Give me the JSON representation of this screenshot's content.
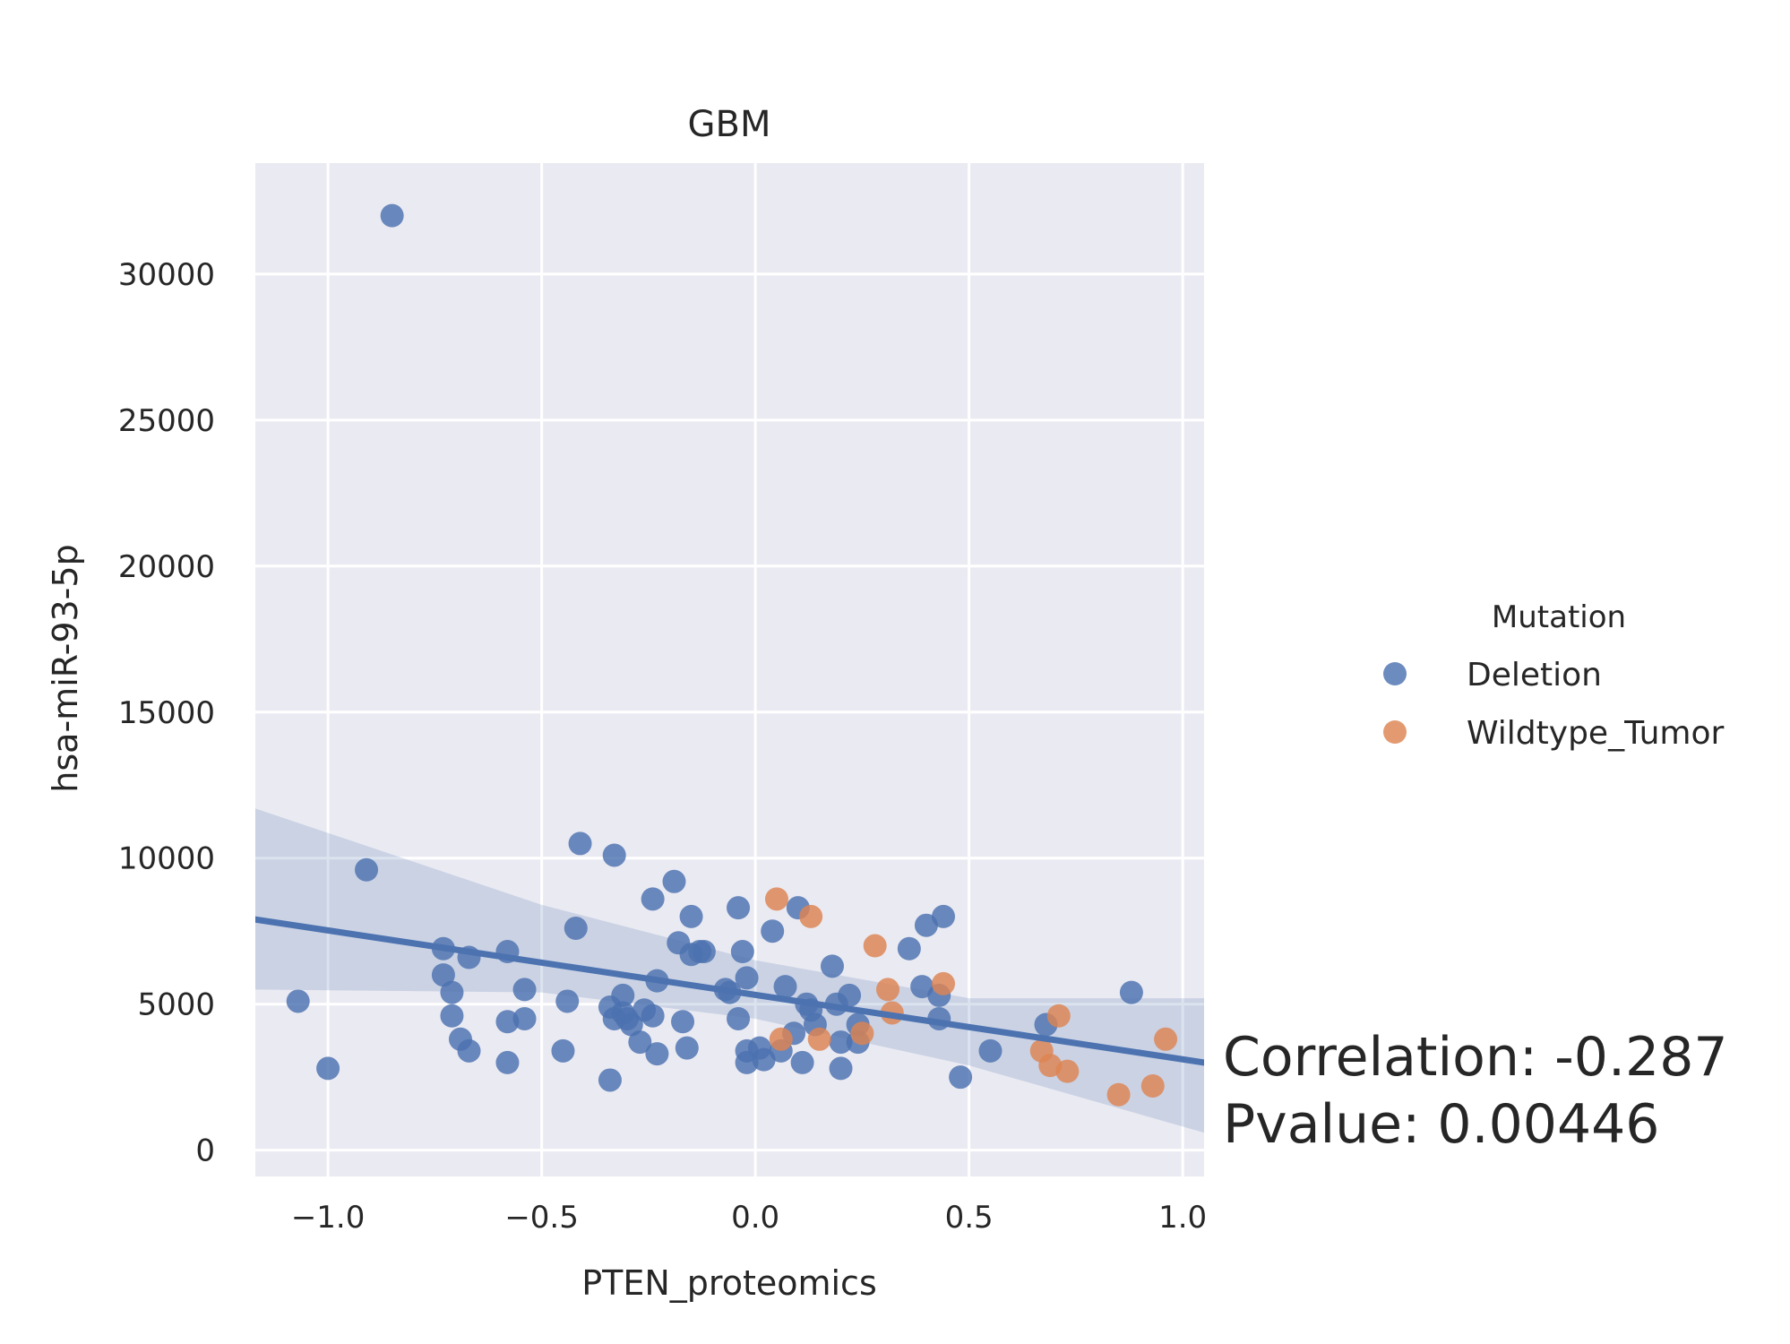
{
  "chart_data": {
    "type": "scatter",
    "title": "GBM",
    "xlabel": "PTEN_proteomics",
    "ylabel": "hsa-miR-93-5p",
    "xlim": [
      -1.17,
      1.05
    ],
    "ylim": [
      -900,
      33800
    ],
    "x_ticks": [
      -1.0,
      -0.5,
      0.0,
      0.5,
      1.0
    ],
    "x_tick_labels": [
      "−1.0",
      "−0.5",
      "0.0",
      "0.5",
      "1.0"
    ],
    "y_ticks": [
      0,
      5000,
      10000,
      15000,
      20000,
      25000,
      30000
    ],
    "y_tick_labels": [
      "0",
      "5000",
      "10000",
      "15000",
      "20000",
      "25000",
      "30000"
    ],
    "grid": true,
    "background": "#eaeaf2",
    "legend": {
      "title": "Mutation",
      "placement": "right",
      "entries": [
        {
          "label": "Deletion",
          "color": "#4c72b0"
        },
        {
          "label": "Wildtype_Tumor",
          "color": "#dd8452"
        }
      ]
    },
    "series": [
      {
        "name": "Deletion",
        "color": "#4c72b0",
        "points": [
          [
            -0.85,
            32000
          ],
          [
            -0.91,
            9600
          ],
          [
            -1.07,
            5100
          ],
          [
            -1.0,
            2800
          ],
          [
            -0.73,
            6900
          ],
          [
            -0.73,
            6000
          ],
          [
            -0.71,
            5400
          ],
          [
            -0.71,
            4600
          ],
          [
            -0.69,
            3800
          ],
          [
            -0.67,
            3400
          ],
          [
            -0.67,
            6600
          ],
          [
            -0.58,
            6800
          ],
          [
            -0.58,
            4400
          ],
          [
            -0.58,
            3000
          ],
          [
            -0.54,
            4500
          ],
          [
            -0.54,
            5500
          ],
          [
            -0.45,
            3400
          ],
          [
            -0.44,
            5100
          ],
          [
            -0.42,
            7600
          ],
          [
            -0.41,
            10500
          ],
          [
            -0.34,
            2400
          ],
          [
            -0.34,
            4900
          ],
          [
            -0.33,
            10100
          ],
          [
            -0.33,
            4500
          ],
          [
            -0.31,
            5300
          ],
          [
            -0.31,
            4700
          ],
          [
            -0.3,
            4500
          ],
          [
            -0.29,
            4300
          ],
          [
            -0.27,
            3700
          ],
          [
            -0.26,
            4800
          ],
          [
            -0.24,
            4600
          ],
          [
            -0.24,
            8600
          ],
          [
            -0.23,
            3300
          ],
          [
            -0.23,
            5800
          ],
          [
            -0.19,
            9200
          ],
          [
            -0.18,
            7100
          ],
          [
            -0.17,
            4400
          ],
          [
            -0.16,
            3500
          ],
          [
            -0.15,
            8000
          ],
          [
            -0.15,
            6700
          ],
          [
            -0.13,
            6800
          ],
          [
            -0.12,
            6800
          ],
          [
            -0.07,
            5500
          ],
          [
            -0.06,
            5400
          ],
          [
            -0.04,
            8300
          ],
          [
            -0.04,
            4500
          ],
          [
            -0.03,
            6800
          ],
          [
            -0.02,
            5900
          ],
          [
            -0.02,
            3400
          ],
          [
            -0.02,
            3000
          ],
          [
            0.01,
            3500
          ],
          [
            0.02,
            3100
          ],
          [
            0.04,
            7500
          ],
          [
            0.06,
            3400
          ],
          [
            0.07,
            5600
          ],
          [
            0.09,
            4000
          ],
          [
            0.1,
            8300
          ],
          [
            0.11,
            3000
          ],
          [
            0.12,
            5000
          ],
          [
            0.13,
            4800
          ],
          [
            0.14,
            4300
          ],
          [
            0.18,
            6300
          ],
          [
            0.19,
            5000
          ],
          [
            0.2,
            3700
          ],
          [
            0.2,
            2800
          ],
          [
            0.22,
            5300
          ],
          [
            0.24,
            3700
          ],
          [
            0.24,
            4300
          ],
          [
            0.36,
            6900
          ],
          [
            0.39,
            5600
          ],
          [
            0.4,
            7700
          ],
          [
            0.43,
            5300
          ],
          [
            0.43,
            4500
          ],
          [
            0.44,
            8000
          ],
          [
            0.48,
            2500
          ],
          [
            0.55,
            3400
          ],
          [
            0.68,
            4300
          ],
          [
            0.88,
            5400
          ]
        ]
      },
      {
        "name": "Wildtype_Tumor",
        "color": "#dd8452",
        "points": [
          [
            0.05,
            8600
          ],
          [
            0.06,
            3800
          ],
          [
            0.13,
            8000
          ],
          [
            0.15,
            3800
          ],
          [
            0.25,
            4000
          ],
          [
            0.28,
            7000
          ],
          [
            0.31,
            5500
          ],
          [
            0.32,
            4700
          ],
          [
            0.44,
            5700
          ],
          [
            0.67,
            3400
          ],
          [
            0.69,
            2900
          ],
          [
            0.71,
            4600
          ],
          [
            0.73,
            2700
          ],
          [
            0.85,
            1900
          ],
          [
            0.93,
            2200
          ],
          [
            0.96,
            3800
          ]
        ]
      }
    ],
    "regression": {
      "line": [
        [
          -1.17,
          7900
        ],
        [
          1.05,
          3000
        ]
      ],
      "ci_upper": [
        [
          -1.17,
          11700
        ],
        [
          -0.5,
          8400
        ],
        [
          0.0,
          6500
        ],
        [
          0.5,
          5200
        ],
        [
          1.05,
          5200
        ]
      ],
      "ci_lower": [
        [
          -1.17,
          5500
        ],
        [
          -0.5,
          5400
        ],
        [
          0.0,
          4500
        ],
        [
          0.5,
          2900
        ],
        [
          1.05,
          600
        ]
      ],
      "color": "#4c72b0"
    },
    "annotations": [
      "Correlation: -0.287",
      "Pvalue: 0.00446"
    ]
  }
}
